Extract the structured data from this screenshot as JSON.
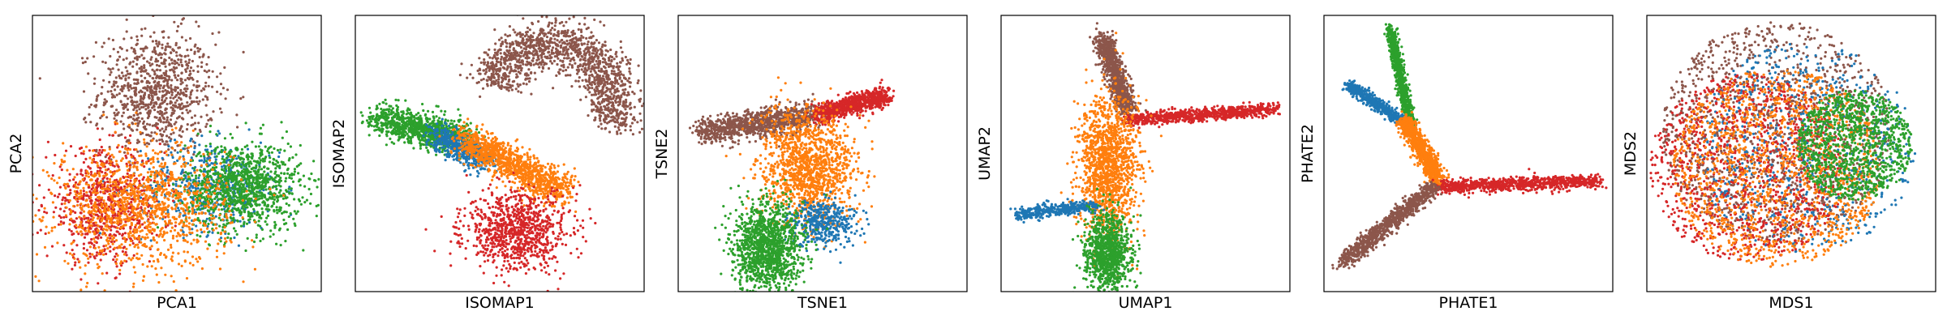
{
  "figure": {
    "colors": {
      "blue": "#1f77b4",
      "orange": "#ff7f0e",
      "green": "#2ca02c",
      "red": "#d62728",
      "brown": "#8c564b"
    }
  },
  "chart_data": [
    {
      "type": "scatter",
      "xlabel": "PCA1",
      "ylabel": "PCA2",
      "xlim": [
        0,
        100
      ],
      "ylim": [
        0,
        100
      ],
      "ticks": "none",
      "clusters": [
        {
          "color": "brown",
          "cx": 43,
          "cy": 72,
          "sx": 10,
          "sy": 11,
          "n": 900
        },
        {
          "color": "blue",
          "cx": 62,
          "cy": 38,
          "sx": 12,
          "sy": 8,
          "n": 500
        },
        {
          "color": "green",
          "cx": 73,
          "cy": 38,
          "sx": 10,
          "sy": 8,
          "n": 1100
        },
        {
          "color": "red",
          "cx": 25,
          "cy": 31,
          "sx": 10,
          "sy": 10,
          "n": 700
        },
        {
          "color": "orange",
          "cx": 38,
          "cy": 31,
          "sx": 15,
          "sy": 11,
          "n": 1200
        }
      ]
    },
    {
      "type": "scatter",
      "xlabel": "ISOMAP1",
      "ylabel": "ISOMAP2",
      "xlim": [
        0,
        100
      ],
      "ylim": [
        0,
        100
      ],
      "ticks": "none",
      "clusters": [
        {
          "color": "brown",
          "shape": "arc",
          "cx": 68,
          "cy": 68,
          "rx": 22,
          "ry": 22,
          "a0": -20,
          "a1": 160,
          "w": 5,
          "n": 1400
        },
        {
          "color": "green",
          "shape": "line",
          "x0": 8,
          "y0": 63,
          "x1": 38,
          "y1": 55,
          "w": 5,
          "n": 1000
        },
        {
          "color": "blue",
          "shape": "line",
          "x0": 28,
          "y0": 57,
          "x1": 45,
          "y1": 47,
          "w": 4,
          "n": 500
        },
        {
          "color": "orange",
          "shape": "line",
          "x0": 38,
          "y0": 55,
          "x1": 72,
          "y1": 36,
          "w": 5,
          "n": 1100
        },
        {
          "color": "red",
          "cx": 56,
          "cy": 22,
          "sx": 9,
          "sy": 7,
          "n": 900
        }
      ]
    },
    {
      "type": "scatter",
      "xlabel": "TSNE1",
      "ylabel": "TSNE2",
      "xlim": [
        0,
        100
      ],
      "ylim": [
        0,
        100
      ],
      "ticks": "none",
      "clusters": [
        {
          "color": "brown",
          "shape": "line",
          "x0": 8,
          "y0": 58,
          "x1": 48,
          "y1": 64,
          "w": 4,
          "n": 1000
        },
        {
          "color": "red",
          "shape": "line",
          "x0": 48,
          "y0": 64,
          "x1": 72,
          "y1": 71,
          "w": 3,
          "n": 800
        },
        {
          "color": "orange",
          "cx": 45,
          "cy": 45,
          "sx": 8,
          "sy": 10,
          "n": 1300
        },
        {
          "color": "blue",
          "cx": 50,
          "cy": 25,
          "sx": 6,
          "sy": 4,
          "n": 400
        },
        {
          "color": "green",
          "cx": 31,
          "cy": 16,
          "sx": 6,
          "sy": 8,
          "n": 1300
        }
      ]
    },
    {
      "type": "scatter",
      "xlabel": "UMAP1",
      "ylabel": "UMAP2",
      "xlim": [
        0,
        100
      ],
      "ylim": [
        0,
        100
      ],
      "ticks": "none",
      "clusters": [
        {
          "color": "brown",
          "shape": "line",
          "x0": 35,
          "y0": 92,
          "x1": 44,
          "y1": 65,
          "w": 3,
          "n": 900
        },
        {
          "color": "red",
          "shape": "line",
          "x0": 44,
          "y0": 62,
          "x1": 95,
          "y1": 66,
          "w": 2,
          "n": 800
        },
        {
          "color": "orange",
          "cx": 37,
          "cy": 45,
          "sx": 5,
          "sy": 13,
          "n": 1400
        },
        {
          "color": "blue",
          "shape": "line",
          "x0": 5,
          "y0": 28,
          "x1": 33,
          "y1": 31,
          "w": 2,
          "n": 400
        },
        {
          "color": "green",
          "cx": 37,
          "cy": 14,
          "sx": 4,
          "sy": 7,
          "n": 1000
        }
      ]
    },
    {
      "type": "scatter",
      "xlabel": "PHATE1",
      "ylabel": "PHATE2",
      "xlim": [
        0,
        100
      ],
      "ylim": [
        0,
        100
      ],
      "ticks": "none",
      "clusters": [
        {
          "color": "green",
          "shape": "line",
          "x0": 23,
          "y0": 95,
          "x1": 30,
          "y1": 60,
          "w": 1.5,
          "n": 800
        },
        {
          "color": "blue",
          "shape": "line",
          "x0": 8,
          "y0": 75,
          "x1": 27,
          "y1": 62,
          "w": 1.8,
          "n": 500
        },
        {
          "color": "orange",
          "shape": "line",
          "x0": 28,
          "y0": 62,
          "x1": 40,
          "y1": 40,
          "w": 2.5,
          "n": 1000
        },
        {
          "color": "red",
          "shape": "line",
          "x0": 40,
          "y0": 38,
          "x1": 96,
          "y1": 40,
          "w": 2,
          "n": 900
        },
        {
          "color": "brown",
          "shape": "line",
          "x0": 38,
          "y0": 38,
          "x1": 6,
          "y1": 10,
          "w": 2.5,
          "n": 900
        }
      ]
    },
    {
      "type": "scatter",
      "xlabel": "MDS1",
      "ylabel": "MDS2",
      "xlim": [
        0,
        100
      ],
      "ylim": [
        0,
        100
      ],
      "ticks": "none",
      "clusters": [
        {
          "color": "brown",
          "shape": "disc",
          "cx": 45,
          "cy": 58,
          "r": 40,
          "n": 1300
        },
        {
          "color": "blue",
          "shape": "disc",
          "cx": 55,
          "cy": 52,
          "r": 38,
          "n": 700
        },
        {
          "color": "red",
          "shape": "disc",
          "cx": 35,
          "cy": 45,
          "r": 34,
          "n": 1100
        },
        {
          "color": "orange",
          "shape": "disc",
          "cx": 45,
          "cy": 45,
          "r": 36,
          "n": 1300
        },
        {
          "color": "green",
          "shape": "disc",
          "cx": 72,
          "cy": 53,
          "r": 20,
          "n": 1100
        }
      ]
    }
  ]
}
